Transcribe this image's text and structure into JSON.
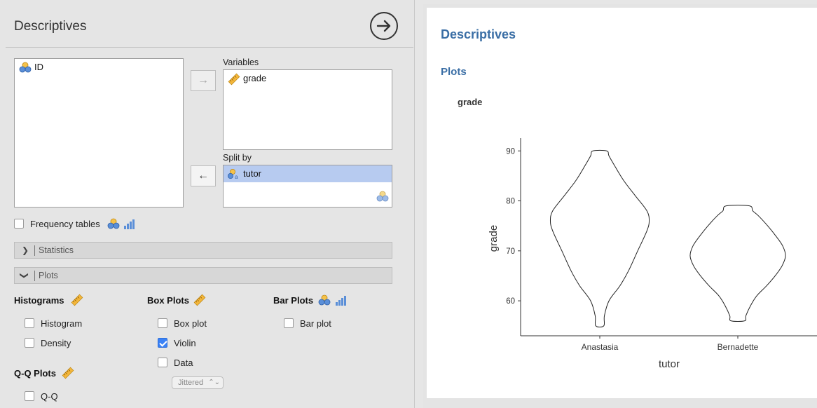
{
  "panel": {
    "title": "Descriptives"
  },
  "available_vars": [
    {
      "name": "ID",
      "type": "nominal"
    }
  ],
  "variables": {
    "label": "Variables",
    "items": [
      {
        "name": "grade",
        "type": "continuous"
      }
    ]
  },
  "split_by": {
    "label": "Split by",
    "items": [
      {
        "name": "tutor",
        "type": "nominal-text",
        "selected": true
      }
    ]
  },
  "frequency_tables": {
    "label": "Frequency tables",
    "checked": false
  },
  "sections": {
    "statistics": "Statistics",
    "plots": "Plots"
  },
  "histograms": {
    "heading": "Histograms",
    "options": [
      {
        "label": "Histogram",
        "checked": false
      },
      {
        "label": "Density",
        "checked": false
      }
    ]
  },
  "box_plots": {
    "heading": "Box Plots",
    "options": [
      {
        "label": "Box plot",
        "checked": false
      },
      {
        "label": "Violin",
        "checked": true
      },
      {
        "label": "Data",
        "checked": false
      }
    ],
    "data_mode": "Jittered"
  },
  "bar_plots": {
    "heading": "Bar Plots",
    "options": [
      {
        "label": "Bar plot",
        "checked": false
      }
    ]
  },
  "qq_plots": {
    "heading": "Q-Q Plots",
    "options": [
      {
        "label": "Q-Q",
        "checked": false
      }
    ]
  },
  "results": {
    "title": "Descriptives",
    "section": "Plots",
    "variable": "grade"
  },
  "chart_data": {
    "type": "violin",
    "categories": [
      "Anastasia",
      "Bernadette"
    ],
    "xlabel": "tutor",
    "ylabel": "grade",
    "ylim": [
      53,
      92
    ],
    "yticks": [
      60,
      70,
      80,
      90
    ],
    "series": [
      {
        "category": "Anastasia",
        "profile": [
          [
            55,
            0.7
          ],
          [
            57,
            0.8
          ],
          [
            60,
            1.6
          ],
          [
            63,
            3.5
          ],
          [
            66,
            5.0
          ],
          [
            70,
            6.6
          ],
          [
            74,
            8.2
          ],
          [
            76,
            8.6
          ],
          [
            78,
            8.2
          ],
          [
            81,
            6.2
          ],
          [
            84,
            4.2
          ],
          [
            87,
            2.6
          ],
          [
            89,
            1.6
          ],
          [
            90,
            1.2
          ]
        ]
      },
      {
        "category": "Bernadette",
        "profile": [
          [
            56,
            1.2
          ],
          [
            57,
            1.4
          ],
          [
            59,
            2.2
          ],
          [
            61,
            3.3
          ],
          [
            63,
            5.0
          ],
          [
            65,
            6.5
          ],
          [
            67,
            7.7
          ],
          [
            69,
            8.3
          ],
          [
            71,
            7.8
          ],
          [
            73,
            6.6
          ],
          [
            75,
            5.2
          ],
          [
            77,
            3.6
          ],
          [
            78,
            2.6
          ],
          [
            79,
            2.0
          ]
        ]
      }
    ]
  }
}
